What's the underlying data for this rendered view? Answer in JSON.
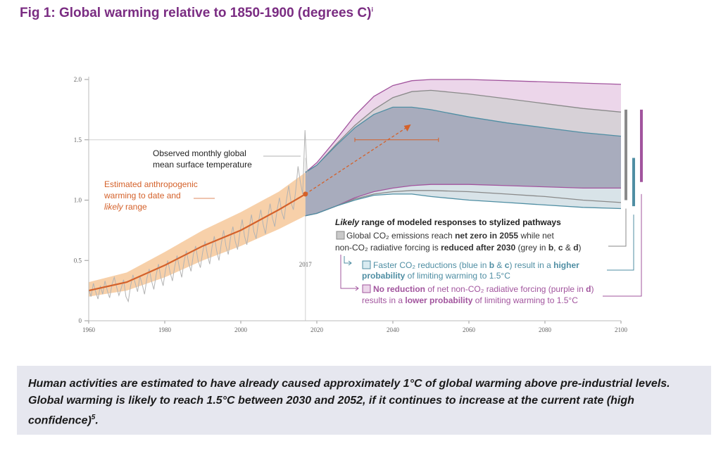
{
  "figure": {
    "title": "Fig 1: Global warming relative to 1850-1900 (degrees C)",
    "title_superscript": "i"
  },
  "caption": {
    "text": "Human activities are estimated to have already caused approximately 1°C of global warming above pre-industrial levels. Global warming is likely to reach 1.5°C between 2030 and 2052, if it continues to increase at the current rate (high confidence)",
    "superscript": "5",
    "end": "."
  },
  "colors": {
    "title": "#7a2c82",
    "observed": "#b3b3b3",
    "anthropogenic": "#d4612a",
    "anthropogenic_range": "#f6c89a",
    "grey_pathway": "#8a8a8a",
    "blue_pathway": "#4f8ea3",
    "purple_pathway": "#a2559e",
    "caption_bg": "#e6e7ef"
  },
  "chart_data": {
    "type": "area",
    "xlim": [
      1960,
      2100
    ],
    "ylim": [
      0,
      2.0
    ],
    "x_ticks": [
      "1960",
      "1980",
      "2000",
      "2020",
      "2040",
      "2060",
      "2080",
      "2100"
    ],
    "y_ticks": [
      "0",
      "0.5",
      "1.0",
      "1.5",
      "2.0"
    ],
    "reference_line": 1.5,
    "marker_year_label": "2017",
    "marker_year": 2017,
    "observed_monthly": {
      "label_line1": "Observed monthly global",
      "label_line2": "mean surface temperature",
      "x_start": 1960,
      "x_end": 2017.5,
      "values": [
        0.26,
        0.2,
        0.31,
        0.24,
        0.18,
        0.29,
        0.22,
        0.33,
        0.25,
        0.19,
        0.3,
        0.36,
        0.28,
        0.21,
        0.27,
        0.34,
        0.2,
        0.16,
        0.29,
        0.38,
        0.31,
        0.24,
        0.37,
        0.3,
        0.22,
        0.35,
        0.43,
        0.33,
        0.26,
        0.38,
        0.47,
        0.36,
        0.29,
        0.42,
        0.5,
        0.4,
        0.33,
        0.45,
        0.54,
        0.44,
        0.36,
        0.49,
        0.58,
        0.48,
        0.41,
        0.55,
        0.62,
        0.5,
        0.44,
        0.57,
        0.66,
        0.55,
        0.47,
        0.61,
        0.7,
        0.58,
        0.5,
        0.64,
        0.75,
        0.62,
        0.55,
        0.69,
        0.78,
        0.66,
        0.59,
        0.73,
        0.84,
        0.7,
        0.63,
        0.77,
        0.88,
        0.74,
        0.68,
        0.82,
        0.92,
        0.8,
        0.72,
        0.86,
        0.97,
        0.85,
        0.78,
        0.92,
        1.02,
        0.9,
        0.84,
        1.0,
        1.12,
        0.98,
        0.92,
        1.08,
        1.28,
        1.15,
        1.05,
        1.58,
        1.2
      ]
    },
    "anthropogenic": {
      "label_line1": "Estimated anthropogenic",
      "label_line2": "warming to date and",
      "label_line3_italic": "likely",
      "label_line3_rest": " range",
      "x": [
        1960,
        1970,
        1980,
        1990,
        2000,
        2010,
        2017
      ],
      "central": [
        0.25,
        0.32,
        0.46,
        0.62,
        0.75,
        0.92,
        1.05
      ],
      "lower": [
        0.2,
        0.25,
        0.36,
        0.5,
        0.62,
        0.76,
        0.87
      ],
      "upper": [
        0.32,
        0.4,
        0.57,
        0.75,
        0.9,
        1.07,
        1.23
      ]
    },
    "projection": {
      "arrow_start": [
        2017,
        1.05
      ],
      "arrow_end": [
        2044,
        1.61
      ],
      "range_bar_y": 1.5,
      "range_bar_x": [
        2030,
        2052
      ]
    },
    "pathways": {
      "x": [
        2017,
        2020,
        2025,
        2030,
        2035,
        2040,
        2045,
        2050,
        2060,
        2070,
        2080,
        2090,
        2100
      ],
      "grey_lower": [
        0.87,
        0.89,
        0.95,
        1.01,
        1.05,
        1.07,
        1.08,
        1.08,
        1.07,
        1.05,
        1.03,
        1.0,
        0.98
      ],
      "blue_lower": [
        0.87,
        0.89,
        0.95,
        1.0,
        1.04,
        1.05,
        1.05,
        1.03,
        1.0,
        0.98,
        0.96,
        0.94,
        0.93
      ],
      "purple_lower": [
        0.87,
        0.89,
        0.95,
        1.02,
        1.07,
        1.1,
        1.12,
        1.13,
        1.13,
        1.12,
        1.11,
        1.1,
        1.1
      ],
      "blue_upper": [
        1.23,
        1.29,
        1.45,
        1.6,
        1.71,
        1.77,
        1.77,
        1.75,
        1.69,
        1.64,
        1.6,
        1.56,
        1.53
      ],
      "grey_upper": [
        1.23,
        1.29,
        1.46,
        1.62,
        1.75,
        1.85,
        1.9,
        1.91,
        1.88,
        1.84,
        1.8,
        1.76,
        1.73
      ],
      "purple_upper": [
        1.23,
        1.31,
        1.5,
        1.7,
        1.86,
        1.95,
        1.99,
        2.0,
        2.0,
        1.99,
        1.98,
        1.97,
        1.96
      ]
    },
    "side_bars": [
      {
        "name": "grey",
        "range": [
          1.0,
          1.75
        ]
      },
      {
        "name": "blue",
        "range": [
          0.95,
          1.35
        ]
      },
      {
        "name": "purple",
        "range": [
          1.15,
          1.75
        ]
      }
    ],
    "legend": {
      "heading_italic": "Likely",
      "heading_rest": " range of modeled responses to stylized pathways",
      "grey_l1_a": "Global CO₂ emissions reach ",
      "grey_l1_b": "net zero in 2055",
      "grey_l1_c": " while net",
      "grey_l2_a": "non-CO₂ radiative forcing is ",
      "grey_l2_b": "reduced after 2030",
      "grey_l2_c": " (grey in ",
      "grey_l2_d": "b",
      "grey_l2_e": ", ",
      "grey_l2_f": "c",
      "grey_l2_g": " & ",
      "grey_l2_h": "d",
      "grey_l2_i": ")",
      "blue_l1_a": "Faster CO₂ reductions (blue in ",
      "blue_l1_b": "b",
      "blue_l1_c": " & ",
      "blue_l1_d": "c",
      "blue_l1_e": ") result in a ",
      "blue_l1_f": "higher",
      "blue_l2_a": "probability",
      "blue_l2_b": " of limiting warming to 1.5°C",
      "purple_l1_a": "No reduction",
      "purple_l1_b": " of net non-CO₂ radiative forcing (purple in ",
      "purple_l1_c": "d",
      "purple_l1_d": ")",
      "purple_l2_a": "results in a ",
      "purple_l2_b": "lower probability",
      "purple_l2_c": " of limiting warming to 1.5°C"
    }
  }
}
